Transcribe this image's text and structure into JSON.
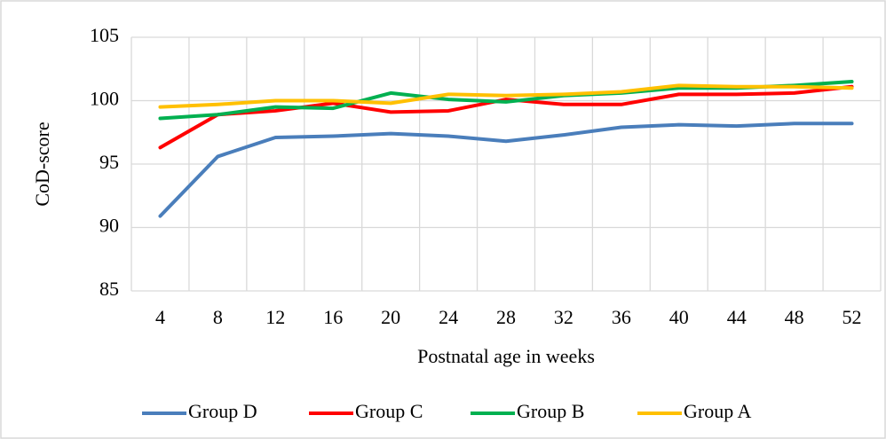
{
  "chart_data": {
    "type": "line",
    "x_label": "Postnatal age in weeks",
    "y_label": "CoD-score",
    "categories": [
      "4",
      "8",
      "12",
      "16",
      "20",
      "24",
      "28",
      "32",
      "36",
      "40",
      "44",
      "48",
      "52"
    ],
    "series": [
      {
        "name": "Group D",
        "color": "#4a7ebb",
        "values": [
          90.9,
          95.6,
          97.1,
          97.2,
          97.4,
          97.2,
          96.8,
          97.3,
          97.9,
          98.1,
          98.0,
          98.2,
          98.2
        ]
      },
      {
        "name": "Group C",
        "color": "#ff0000",
        "values": [
          96.3,
          98.9,
          99.2,
          99.8,
          99.1,
          99.2,
          100.1,
          99.7,
          99.7,
          100.5,
          100.5,
          100.6,
          101.1
        ]
      },
      {
        "name": "Group B",
        "color": "#00b050",
        "values": [
          98.6,
          98.9,
          99.5,
          99.4,
          100.6,
          100.1,
          99.9,
          100.4,
          100.6,
          101.0,
          101.0,
          101.2,
          101.5
        ]
      },
      {
        "name": "Group A",
        "color": "#ffc000",
        "values": [
          99.5,
          99.7,
          100.0,
          100.0,
          99.8,
          100.5,
          100.4,
          100.5,
          100.7,
          101.2,
          101.1,
          101.1,
          101.0
        ]
      }
    ],
    "ylim": [
      85,
      105
    ],
    "yticks": [
      85,
      90,
      95,
      100,
      105
    ],
    "grid": true,
    "legend": "bottom"
  }
}
